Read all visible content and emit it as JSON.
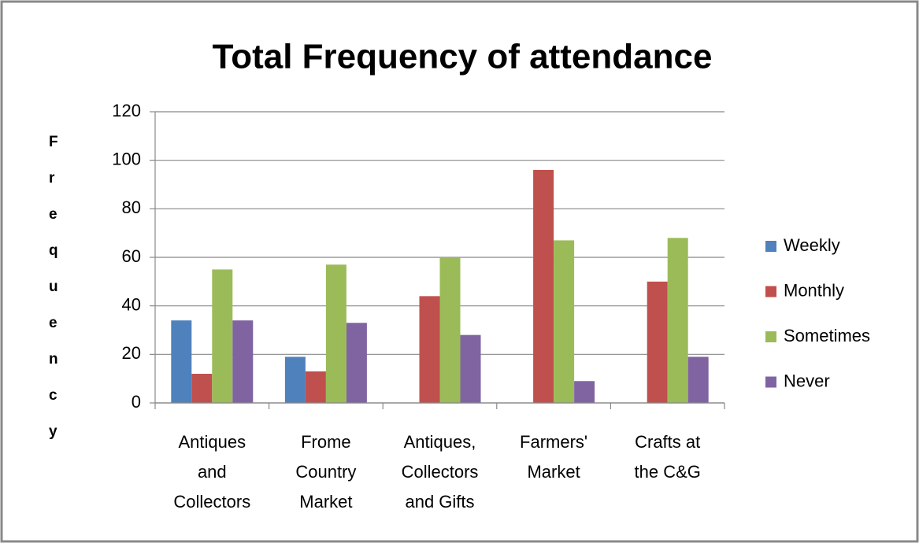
{
  "chart_data": {
    "type": "bar",
    "title": "Total Frequency of attendance",
    "y_label": "Frequency",
    "categories": [
      "Antiques and Collectors",
      "Frome Country Market",
      "Antiques, Collectors and Gifts",
      "Farmers' Market",
      "Crafts at the C&G"
    ],
    "series": [
      {
        "name": "Weekly",
        "color": "#4f81bd",
        "values": [
          34,
          19,
          0,
          0,
          0
        ]
      },
      {
        "name": "Monthly",
        "color": "#c0504d",
        "values": [
          12,
          13,
          44,
          96,
          50
        ]
      },
      {
        "name": "Sometimes",
        "color": "#9bbb59",
        "values": [
          55,
          57,
          60,
          67,
          68
        ]
      },
      {
        "name": "Never",
        "color": "#8064a2",
        "values": [
          34,
          33,
          28,
          9,
          19
        ]
      }
    ],
    "ylim": [
      0,
      120
    ],
    "yticks": [
      0,
      20,
      40,
      60,
      80,
      100,
      120
    ],
    "grid": true,
    "legend": "right"
  }
}
